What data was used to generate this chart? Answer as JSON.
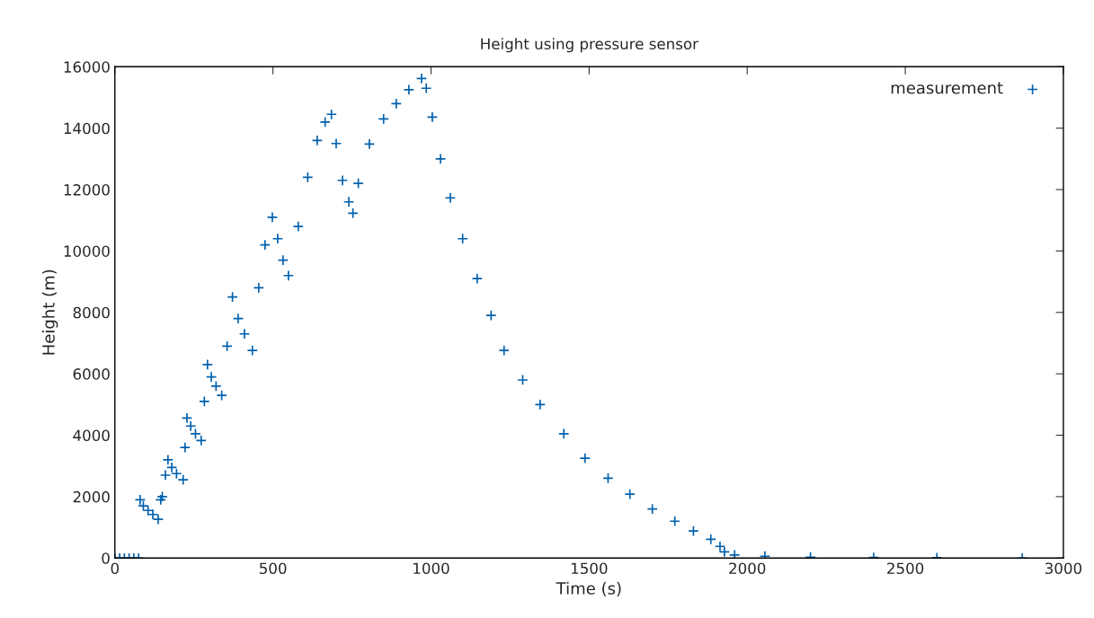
{
  "chart_data": {
    "type": "scatter",
    "title": "Height using pressure sensor",
    "xlabel": "Time (s)",
    "ylabel": "Height (m)",
    "xlim": [
      0,
      3000
    ],
    "ylim": [
      0,
      16000
    ],
    "xticks": [
      0,
      500,
      1000,
      1500,
      2000,
      2500,
      3000
    ],
    "yticks": [
      0,
      2000,
      4000,
      6000,
      8000,
      10000,
      12000,
      14000,
      16000
    ],
    "grid": false,
    "legend": "top right",
    "marker": "cross",
    "series": [
      {
        "name": "measurement",
        "color": "#0060ad",
        "x": [
          0,
          15,
          30,
          45,
          60,
          75,
          80,
          90,
          105,
          120,
          137,
          145,
          150,
          160,
          168,
          180,
          195,
          216,
          222,
          228,
          240,
          255,
          273,
          283,
          293,
          305,
          320,
          338,
          355,
          372,
          390,
          410,
          435,
          455,
          475,
          498,
          515,
          532,
          549,
          580,
          610,
          640,
          665,
          685,
          700,
          720,
          740,
          753,
          770,
          805,
          850,
          890,
          930,
          970,
          985,
          1004,
          1030,
          1061,
          1100,
          1146,
          1190,
          1231,
          1290,
          1345,
          1420,
          1487,
          1560,
          1629,
          1700,
          1771,
          1830,
          1885,
          1914,
          1928,
          1960,
          2056,
          2200,
          2400,
          2600,
          2870
        ],
        "values": [
          0,
          0,
          0,
          0,
          0,
          0,
          1900,
          1700,
          1550,
          1420,
          1260,
          1900,
          2000,
          2700,
          3200,
          2950,
          2750,
          2550,
          3600,
          4560,
          4300,
          4050,
          3830,
          5100,
          6300,
          5900,
          5600,
          5300,
          6900,
          8500,
          7800,
          7300,
          6760,
          8800,
          10200,
          11100,
          10400,
          9700,
          9200,
          10800,
          12400,
          13600,
          14200,
          14450,
          13500,
          12300,
          11600,
          11230,
          12200,
          13480,
          14300,
          14800,
          15250,
          15620,
          15300,
          14360,
          13000,
          11730,
          10400,
          9100,
          7900,
          6760,
          5800,
          5000,
          4050,
          3250,
          2600,
          2080,
          1600,
          1200,
          880,
          610,
          380,
          200,
          100,
          60,
          30,
          20,
          10,
          0
        ]
      }
    ]
  }
}
